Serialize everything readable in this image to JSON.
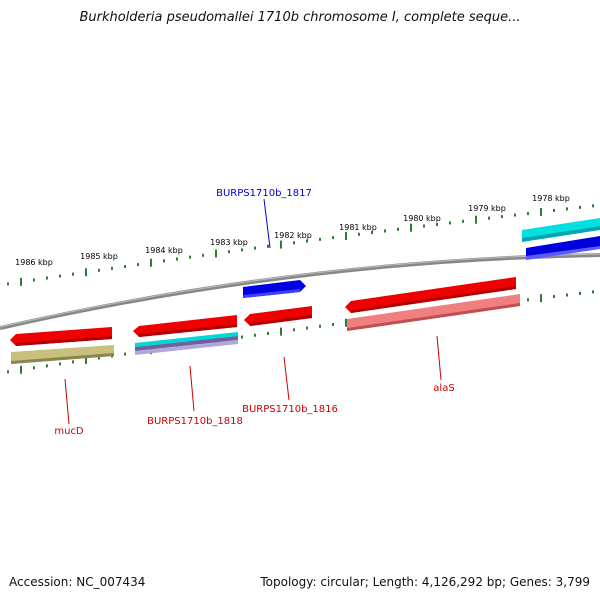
{
  "title": "Burkholderia pseudomallei 1710b chromosome I, complete seque...",
  "scale": {
    "unit": "kbp",
    "ticks": [
      "1986 kbp",
      "1985 kbp",
      "1984 kbp",
      "1983 kbp",
      "1982 kbp",
      "1981 kbp",
      "1980 kbp",
      "1979 kbp",
      "1978 kbp"
    ]
  },
  "genes": [
    {
      "label": "BURPS1710b_1817",
      "strand": "plus",
      "color": "#0000cc"
    },
    {
      "label": "BURPS1710b_1816",
      "strand": "minus",
      "color": "#cc0000"
    },
    {
      "label": "BURPS1710b_1818",
      "strand": "minus",
      "color": "#cc0000"
    },
    {
      "label": "mucD",
      "strand": "minus",
      "color": "#cc0000"
    },
    {
      "label": "alaS",
      "strand": "minus",
      "color": "#cc0000"
    }
  ],
  "footer": {
    "accession": "Accession: NC_007434",
    "summary": "Topology: circular; Length: 4,126,292 bp; Genes: 3,799"
  },
  "colors": {
    "backbone": "#808080",
    "tick": "#2e7d32",
    "cds_red": "#ee0000",
    "cds_blue": "#0000dd",
    "cyan": "#00e5e5",
    "pink": "#f08080",
    "olive": "#c8c080",
    "purple": "#7a6ea8"
  }
}
